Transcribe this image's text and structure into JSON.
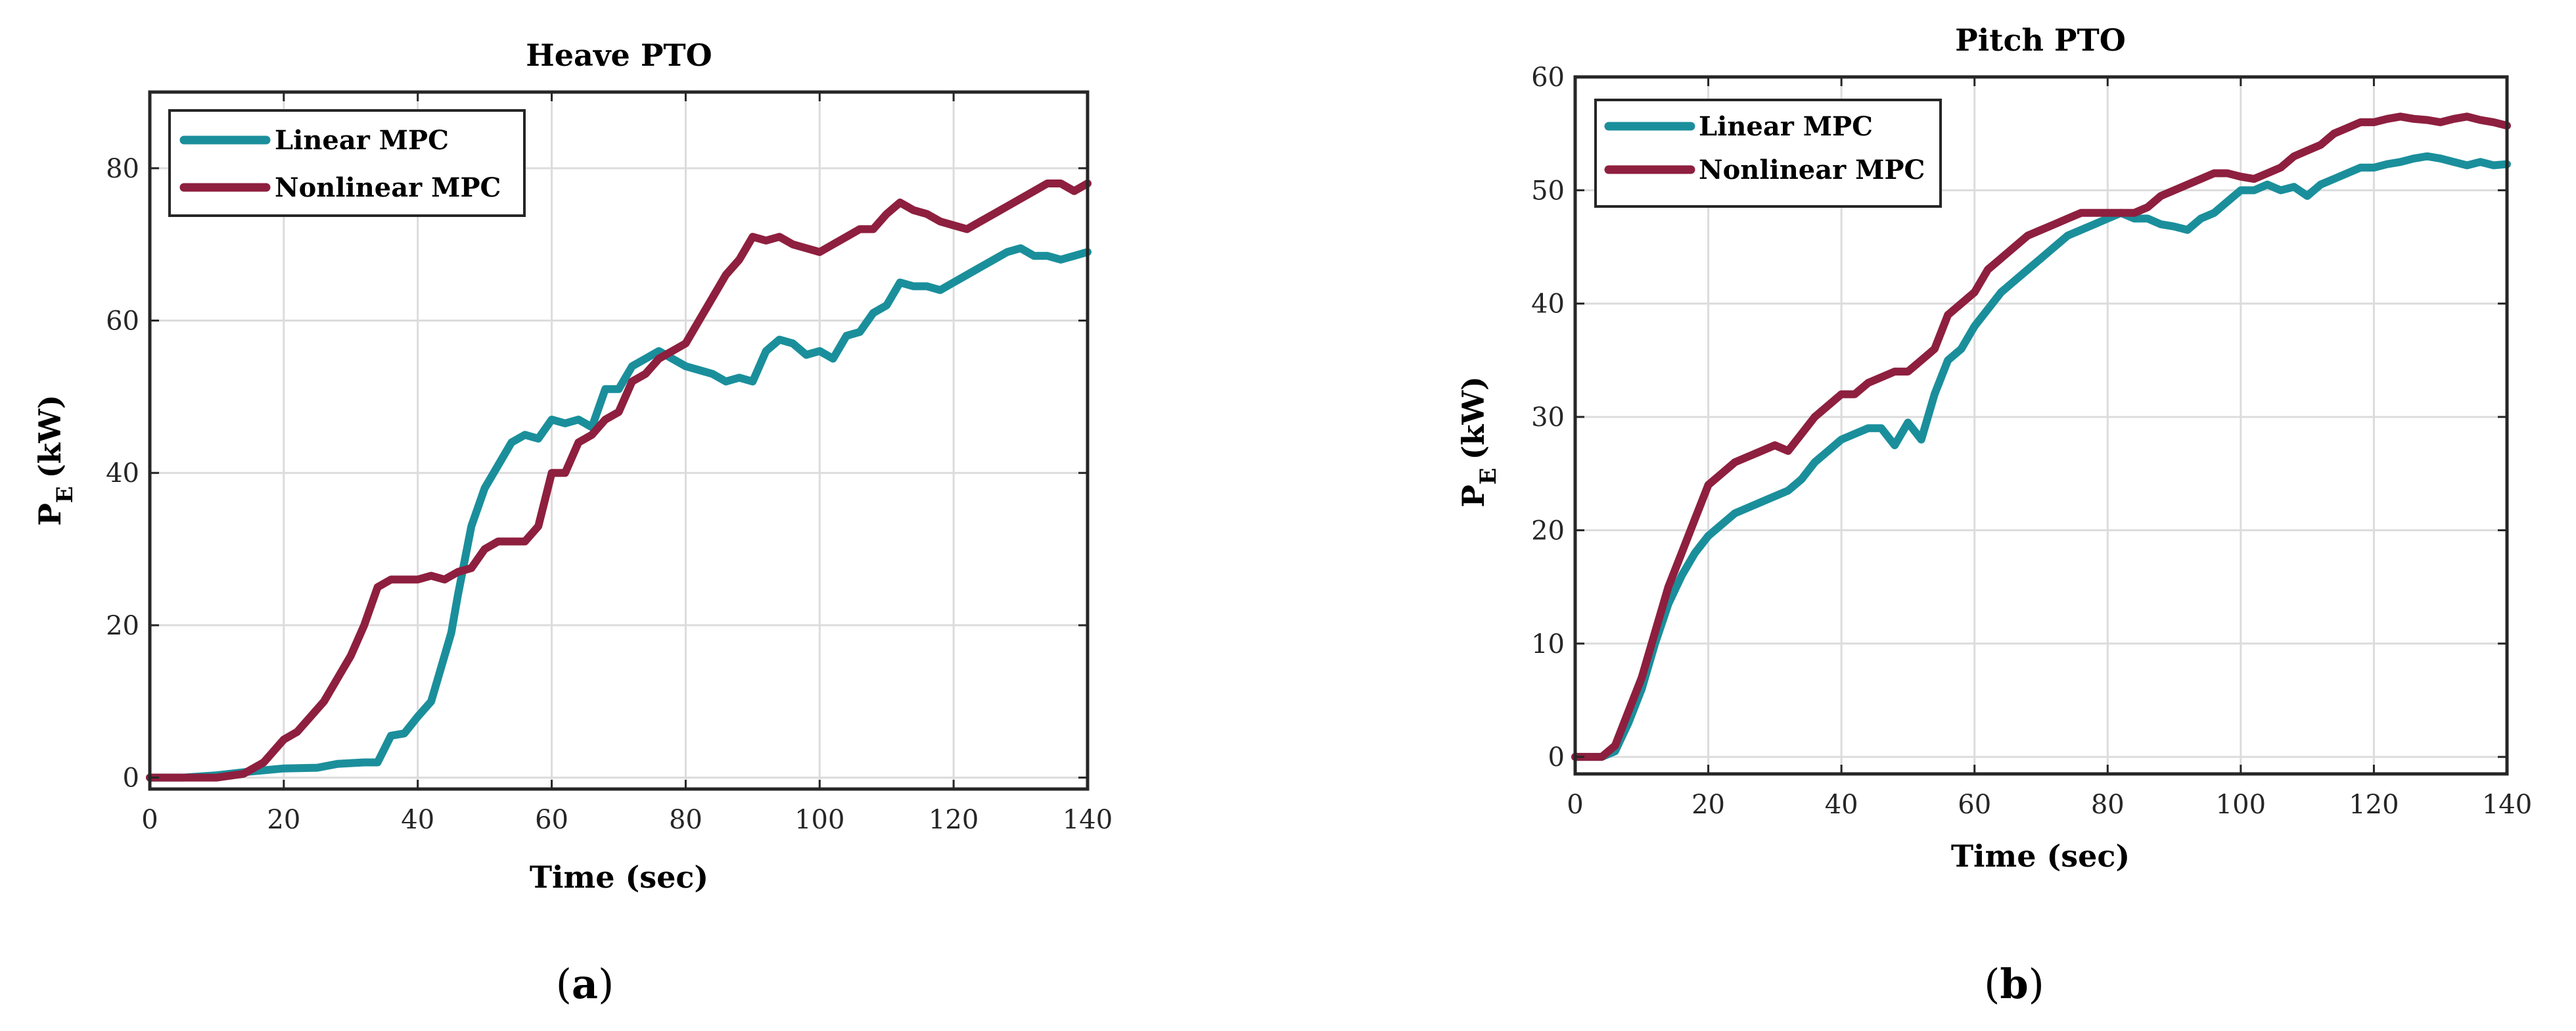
{
  "colors": {
    "linear": "#1a8f9b",
    "nonlinear": "#8e1f3f"
  },
  "panels": [
    {
      "label": "(a)",
      "label_prefix": "(",
      "label_letter": "a",
      "label_suffix": ")"
    },
    {
      "label": "(b)",
      "label_prefix": "(",
      "label_letter": "b",
      "label_suffix": ")"
    }
  ],
  "chart_data": [
    {
      "type": "line",
      "title": "Heave PTO",
      "xlabel": "Time (sec)",
      "ylabel_main": "P",
      "ylabel_sub": "E",
      "ylabel_unit": "(kW)",
      "xlim": [
        0,
        140
      ],
      "ylim": [
        -1.5,
        90
      ],
      "xticks": [
        0,
        20,
        40,
        60,
        80,
        100,
        120,
        140
      ],
      "yticks": [
        0,
        20,
        40,
        60,
        80
      ],
      "grid": true,
      "legend_position": "top-left",
      "series": [
        {
          "name": "Linear MPC",
          "x": [
            0,
            5,
            10,
            15,
            20,
            25,
            28,
            32,
            34,
            36,
            38,
            40,
            42,
            44,
            45,
            46,
            48,
            50,
            52,
            54,
            56,
            58,
            60,
            62,
            64,
            66,
            68,
            70,
            72,
            74,
            76,
            78,
            80,
            82,
            84,
            86,
            88,
            90,
            92,
            94,
            96,
            98,
            100,
            102,
            104,
            106,
            108,
            110,
            112,
            114,
            116,
            118,
            120,
            122,
            124,
            126,
            128,
            130,
            132,
            134,
            136,
            138,
            140
          ],
          "y": [
            0,
            0,
            0.3,
            0.8,
            1.2,
            1.3,
            1.8,
            2,
            2,
            5.5,
            5.8,
            8,
            10,
            16,
            19,
            24,
            33,
            38,
            41,
            44,
            45,
            44.5,
            47,
            46.5,
            47,
            46,
            51,
            51,
            54,
            55,
            56,
            55,
            54,
            53.5,
            53,
            52,
            52.5,
            52,
            56,
            57.5,
            57,
            55.5,
            56,
            55,
            58,
            58.5,
            61,
            62,
            65,
            64.5,
            64.5,
            64,
            65,
            66,
            67,
            68,
            69,
            69.5,
            68.5,
            68.5,
            68,
            68.5,
            69
          ]
        },
        {
          "name": "Nonlinear MPC",
          "x": [
            0,
            5,
            10,
            14,
            17,
            20,
            22,
            24,
            26,
            28,
            30,
            32,
            34,
            36,
            38,
            40,
            42,
            44,
            46,
            48,
            50,
            52,
            54,
            56,
            58,
            60,
            62,
            64,
            66,
            68,
            70,
            72,
            74,
            76,
            78,
            80,
            82,
            84,
            86,
            88,
            90,
            92,
            94,
            96,
            98,
            100,
            102,
            104,
            106,
            108,
            110,
            112,
            114,
            116,
            118,
            120,
            122,
            124,
            126,
            128,
            130,
            132,
            134,
            136,
            138,
            140
          ],
          "y": [
            0,
            0,
            0,
            0.5,
            2,
            5,
            6,
            8,
            10,
            13,
            16,
            20,
            25,
            26,
            26,
            26,
            26.5,
            26,
            27,
            27.5,
            30,
            31,
            31,
            31,
            33,
            40,
            40,
            44,
            45,
            47,
            48,
            52,
            53,
            55,
            56,
            57,
            60,
            63,
            66,
            68,
            71,
            70.5,
            71,
            70,
            69.5,
            69,
            70,
            71,
            72,
            72,
            74,
            75.5,
            74.5,
            74,
            73,
            72.5,
            72,
            73,
            74,
            75,
            76,
            77,
            78,
            78,
            77,
            78
          ]
        }
      ]
    },
    {
      "type": "line",
      "title": "Pitch PTO",
      "xlabel": "Time (sec)",
      "ylabel_main": "P",
      "ylabel_sub": "E",
      "ylabel_unit": "(kW)",
      "xlim": [
        0,
        140
      ],
      "ylim": [
        -1.5,
        60
      ],
      "xticks": [
        0,
        20,
        40,
        60,
        80,
        100,
        120,
        140
      ],
      "yticks": [
        0,
        10,
        20,
        30,
        40,
        50,
        60
      ],
      "grid": true,
      "legend_position": "top-left",
      "series": [
        {
          "name": "Linear MPC",
          "x": [
            0,
            4,
            6,
            8,
            10,
            12,
            14,
            16,
            18,
            20,
            22,
            24,
            26,
            28,
            30,
            32,
            34,
            36,
            38,
            40,
            42,
            44,
            46,
            48,
            50,
            52,
            54,
            56,
            58,
            60,
            62,
            64,
            66,
            68,
            70,
            72,
            74,
            76,
            78,
            80,
            82,
            84,
            86,
            88,
            90,
            92,
            94,
            96,
            98,
            100,
            102,
            104,
            106,
            108,
            110,
            112,
            114,
            116,
            118,
            120,
            122,
            124,
            126,
            128,
            130,
            132,
            134,
            136,
            138,
            140
          ],
          "y": [
            0,
            0,
            0.5,
            3,
            6,
            10,
            13.5,
            16,
            18,
            19.5,
            20.5,
            21.5,
            22,
            22.5,
            23,
            23.5,
            24.5,
            26,
            27,
            28,
            28.5,
            29,
            29,
            27.5,
            29.5,
            28,
            32,
            35,
            36,
            38,
            39.5,
            41,
            42,
            43,
            44,
            45,
            46,
            46.5,
            47,
            47.5,
            48,
            47.5,
            47.5,
            47,
            46.8,
            46.5,
            47.5,
            48,
            49,
            50,
            50,
            50.5,
            50,
            50.3,
            49.5,
            50.5,
            51,
            51.5,
            52,
            52,
            52.3,
            52.5,
            52.8,
            53,
            52.8,
            52.5,
            52.2,
            52.5,
            52.2,
            52.3
          ]
        },
        {
          "name": "Nonlinear MPC",
          "x": [
            0,
            4,
            6,
            8,
            10,
            12,
            14,
            16,
            18,
            20,
            22,
            24,
            26,
            28,
            30,
            32,
            34,
            36,
            38,
            40,
            42,
            44,
            46,
            48,
            50,
            52,
            54,
            56,
            58,
            60,
            62,
            64,
            66,
            68,
            70,
            72,
            74,
            76,
            78,
            80,
            82,
            84,
            86,
            88,
            90,
            92,
            94,
            96,
            98,
            100,
            102,
            104,
            106,
            108,
            110,
            112,
            114,
            116,
            118,
            120,
            122,
            124,
            126,
            128,
            130,
            132,
            134,
            136,
            138,
            140
          ],
          "y": [
            0,
            0,
            1,
            4,
            7,
            11,
            15,
            18,
            21,
            24,
            25,
            26,
            26.5,
            27,
            27.5,
            27,
            28.5,
            30,
            31,
            32,
            32,
            33,
            33.5,
            34,
            34,
            35,
            36,
            39,
            40,
            41,
            43,
            44,
            45,
            46,
            46.5,
            47,
            47.5,
            48,
            48,
            48,
            48,
            48,
            48.5,
            49.5,
            50,
            50.5,
            51,
            51.5,
            51.5,
            51.2,
            51,
            51.5,
            52,
            53,
            53.5,
            54,
            55,
            55.5,
            56,
            56,
            56.3,
            56.5,
            56.3,
            56.2,
            56,
            56.3,
            56.5,
            56.2,
            56,
            55.7
          ]
        }
      ]
    }
  ]
}
